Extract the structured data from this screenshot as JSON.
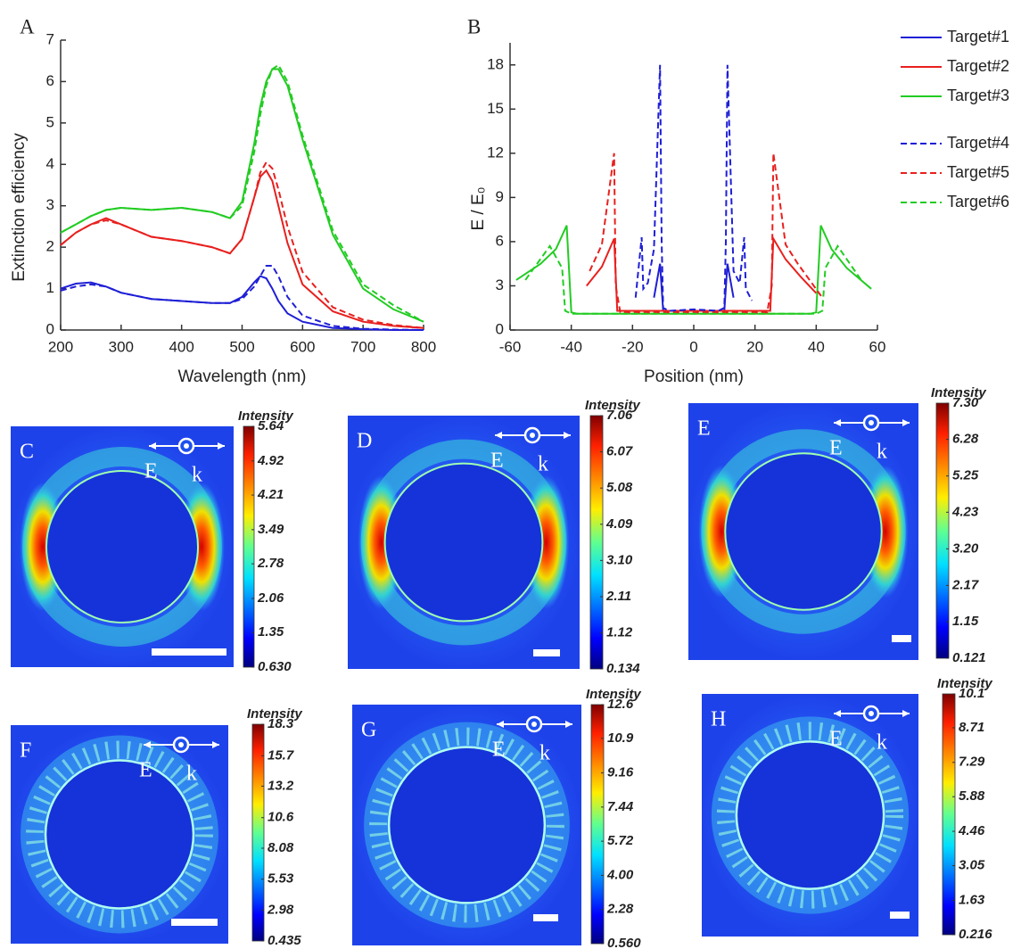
{
  "chart_data": [
    {
      "type": "line",
      "panel_label": "A",
      "x_label": "Wavelength (nm)",
      "y_label": "Extinction efficiency",
      "x": [
        200,
        225,
        250,
        275,
        300,
        350,
        400,
        450,
        480,
        500,
        520,
        530,
        540,
        550,
        560,
        575,
        600,
        650,
        700,
        750,
        800
      ],
      "xlim": [
        200,
        800
      ],
      "xticks": [
        200,
        300,
        400,
        500,
        600,
        700,
        800
      ],
      "ylim": [
        0,
        7
      ],
      "yticks": [
        0,
        1,
        2,
        3,
        4,
        5,
        6,
        7
      ],
      "series": [
        {
          "color": "#1f1fd6",
          "dash": false,
          "values": [
            1.0,
            1.12,
            1.15,
            1.05,
            0.9,
            0.75,
            0.7,
            0.65,
            0.65,
            0.8,
            1.15,
            1.3,
            1.25,
            1.0,
            0.7,
            0.4,
            0.2,
            0.05,
            0.02,
            0,
            0
          ]
        },
        {
          "color": "#e8201e",
          "dash": false,
          "values": [
            2.05,
            2.35,
            2.55,
            2.7,
            2.55,
            2.25,
            2.15,
            2.0,
            1.85,
            2.2,
            3.2,
            3.7,
            3.85,
            3.6,
            3.0,
            2.1,
            1.1,
            0.45,
            0.2,
            0.1,
            0.05
          ]
        },
        {
          "color": "#22cc22",
          "dash": false,
          "values": [
            2.35,
            2.55,
            2.75,
            2.9,
            2.95,
            2.9,
            2.95,
            2.85,
            2.7,
            3.1,
            4.5,
            5.4,
            6.0,
            6.3,
            6.3,
            5.9,
            4.6,
            2.3,
            1.0,
            0.5,
            0.2
          ]
        },
        {
          "color": "#1f1fd6",
          "dash": true,
          "values": [
            0.95,
            1.05,
            1.1,
            1.05,
            0.9,
            0.75,
            0.7,
            0.65,
            0.65,
            0.75,
            1.05,
            1.3,
            1.55,
            1.55,
            1.3,
            0.8,
            0.35,
            0.1,
            0.03,
            0.01,
            0
          ]
        },
        {
          "color": "#e8201e",
          "dash": true,
          "values": [
            2.05,
            2.35,
            2.55,
            2.65,
            2.55,
            2.25,
            2.15,
            2.0,
            1.85,
            2.2,
            3.2,
            3.8,
            4.05,
            3.9,
            3.4,
            2.5,
            1.4,
            0.55,
            0.25,
            0.12,
            0.05
          ]
        },
        {
          "color": "#22cc22",
          "dash": true,
          "values": [
            2.35,
            2.55,
            2.75,
            2.9,
            2.95,
            2.9,
            2.95,
            2.85,
            2.7,
            3.0,
            4.3,
            5.2,
            5.9,
            6.3,
            6.4,
            6.0,
            4.7,
            2.4,
            1.1,
            0.6,
            0.2
          ]
        }
      ]
    },
    {
      "type": "line",
      "panel_label": "B",
      "x_label": "Position (nm)",
      "y_label": "E / E₀",
      "xlim": [
        -60,
        60
      ],
      "xticks": [
        -60,
        -40,
        -20,
        0,
        20,
        40,
        60
      ],
      "ylim": [
        0,
        19.5
      ],
      "yticks": [
        0,
        3,
        6,
        9,
        12,
        15,
        18
      ],
      "legend": "upper right",
      "series": [
        {
          "name": "Target#1",
          "color": "#1f1fd6",
          "dash": false,
          "x": [
            -13,
            -11,
            -10,
            -9,
            0,
            9,
            10,
            11,
            13
          ],
          "values": [
            2.2,
            4.5,
            1.3,
            1.3,
            1.3,
            1.3,
            1.3,
            4.5,
            2.2
          ]
        },
        {
          "name": "Target#2",
          "color": "#e8201e",
          "dash": false,
          "x": [
            -35,
            -30,
            -26,
            -25,
            0,
            25,
            26,
            30,
            35,
            40
          ],
          "values": [
            3.0,
            4.3,
            6.2,
            1.3,
            1.3,
            1.3,
            6.2,
            4.8,
            3.6,
            2.5
          ]
        },
        {
          "name": "Target#3",
          "color": "#22cc22",
          "dash": false,
          "x": [
            -58,
            -50,
            -45,
            -41.5,
            -40,
            -38,
            0,
            38,
            40,
            41.5,
            45,
            50,
            58
          ],
          "values": [
            3.4,
            4.5,
            5.5,
            7.1,
            1.2,
            1.1,
            1.1,
            1.1,
            1.2,
            7.1,
            5.5,
            4.2,
            2.8
          ]
        },
        {
          "name": "Target#4",
          "color": "#1f1fd6",
          "dash": true,
          "x": [
            -19,
            -17,
            -16.5,
            -15,
            -13,
            -11,
            -10.5,
            -10,
            -8,
            0,
            8,
            10,
            10.5,
            11,
            13,
            15,
            16.5,
            17,
            19
          ],
          "values": [
            2.2,
            6.3,
            2.8,
            3.2,
            5.5,
            18,
            6,
            1.5,
            1.3,
            1.4,
            1.3,
            1.5,
            6,
            18,
            4,
            3.2,
            6.3,
            2.8,
            2.0
          ]
        },
        {
          "name": "Target#5",
          "color": "#e8201e",
          "dash": true,
          "x": [
            -34,
            -30,
            -26,
            -25.5,
            -24,
            0,
            24,
            25.5,
            26,
            30,
            34,
            42
          ],
          "values": [
            4.0,
            5.8,
            12,
            3,
            1.2,
            1.2,
            1.2,
            3,
            12,
            5.8,
            4.5,
            2.2
          ]
        },
        {
          "name": "Target#6",
          "color": "#22cc22",
          "dash": true,
          "x": [
            -55,
            -47,
            -43,
            -42,
            -40,
            0,
            40,
            42,
            43,
            47,
            55
          ],
          "values": [
            3.4,
            5.7,
            4.2,
            1.3,
            1.1,
            1.1,
            1.1,
            1.3,
            4.2,
            5.7,
            3.3
          ]
        }
      ]
    },
    {
      "type": "heatmap",
      "panel_label": "C",
      "colorbar_label": "Intensity",
      "annotations": [
        "E",
        "k"
      ],
      "clim": [
        0.63,
        5.64
      ],
      "cticks": [
        5.64,
        4.92,
        4.21,
        3.49,
        2.78,
        2.06,
        1.35,
        {
          "value": 0.63,
          "label": "0.630"
        }
      ]
    },
    {
      "type": "heatmap",
      "panel_label": "D",
      "colorbar_label": "Intensity",
      "annotations": [
        "E",
        "k"
      ],
      "clim": [
        0.134,
        7.06
      ],
      "cticks": [
        7.06,
        6.07,
        5.08,
        4.09,
        {
          "value": 3.1,
          "label": "3.10"
        },
        2.11,
        1.12,
        0.134
      ]
    },
    {
      "type": "heatmap",
      "panel_label": "E",
      "colorbar_label": "Intensity",
      "annotations": [
        "E",
        "k"
      ],
      "clim": [
        0.121,
        7.3
      ],
      "cticks": [
        {
          "value": 7.3,
          "label": "7.30"
        },
        6.28,
        5.25,
        4.23,
        {
          "value": 3.2,
          "label": "3.20"
        },
        2.17,
        1.15,
        0.121
      ]
    },
    {
      "type": "heatmap",
      "panel_label": "F",
      "colorbar_label": "Intensity",
      "annotations": [
        "E",
        "k"
      ],
      "clim": [
        0.435,
        18.3
      ],
      "cticks": [
        18.3,
        15.7,
        13.2,
        10.6,
        8.08,
        5.53,
        2.98,
        0.435
      ]
    },
    {
      "type": "heatmap",
      "panel_label": "G",
      "colorbar_label": "Intensity",
      "annotations": [
        "E",
        "k"
      ],
      "clim": [
        0.56,
        12.6
      ],
      "cticks": [
        12.6,
        10.9,
        9.16,
        7.44,
        5.72,
        {
          "value": 4,
          "label": "4.00"
        },
        2.28,
        {
          "value": 0.56,
          "label": "0.560"
        }
      ]
    },
    {
      "type": "heatmap",
      "panel_label": "H",
      "colorbar_label": "Intensity",
      "annotations": [
        "E",
        "k"
      ],
      "clim": [
        0.216,
        10.1
      ],
      "cticks": [
        10.1,
        8.71,
        7.29,
        5.88,
        4.46,
        3.05,
        1.63,
        0.216
      ]
    }
  ]
}
